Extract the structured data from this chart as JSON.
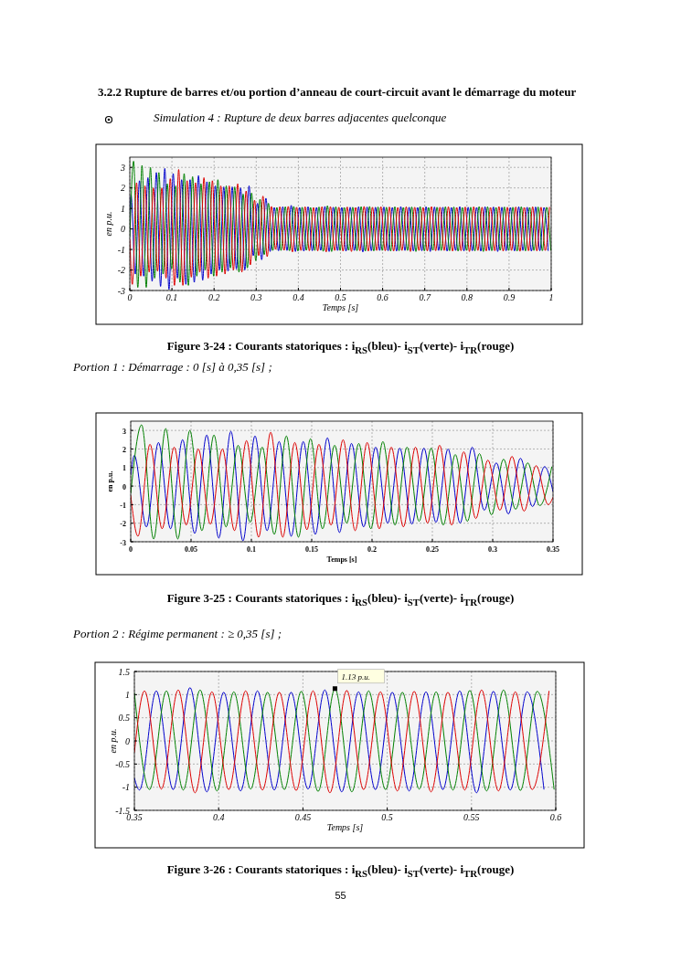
{
  "chart_data": [
    {
      "type": "line",
      "title": "3.2.2  Rupture de barres et/ou portion d’anneau de court-circuit avant le démarrage du moteur",
      "subtitle": "Simulation 4 : Rupture de deux barres adjacentes quelconque",
      "xlabel": "Temps [s]",
      "ylabel": "en p.u.",
      "xlim": [
        0,
        1
      ],
      "xticks": [
        0,
        0.1,
        0.2,
        0.3,
        0.4,
        0.5,
        0.6,
        0.7,
        0.8,
        0.9,
        1
      ],
      "ylim": [
        -3,
        3.5
      ],
      "yticks": [
        -3,
        -2,
        -1,
        0,
        1,
        2,
        3
      ],
      "grid": true,
      "line_style": "solid",
      "annotations": [
        "Figure 3-24 : Courants statoriques : i$_{RS}$(bleu)- i$_{ST}$(verte)- i$_{TR}$(rouge)"
      ],
      "series": [
        {
          "color": "#0000cc",
          "x": [
            0,
            0.003,
            0.013,
            0.023,
            0.033,
            0.043,
            0.053,
            0.063,
            0.073,
            0.083,
            0.093,
            0.103,
            0.113,
            0.123,
            0.133,
            0.143,
            0.153,
            0.163,
            0.173,
            0.183,
            0.193,
            0.203,
            0.213,
            0.223,
            0.233,
            0.243,
            0.253,
            0.263,
            0.273,
            0.283,
            0.293,
            0.303,
            0.313,
            0.323,
            0.333,
            0.343,
            0.353,
            0.363,
            0.373,
            0.383,
            0.393,
            0.403,
            0.413,
            0.423,
            0.433,
            0.443,
            0.453,
            0.463,
            0.473,
            0.483,
            0.493,
            0.503,
            0.513,
            0.523,
            0.533,
            0.543,
            0.553,
            0.563,
            0.573,
            0.583,
            0.593,
            0.603,
            0.613,
            0.623,
            0.633,
            0.643,
            0.653,
            0.663,
            0.673,
            0.683,
            0.693,
            0.703,
            0.713,
            0.723,
            0.733,
            0.743,
            0.753,
            0.763,
            0.773,
            0.783,
            0.793,
            0.803,
            0.813,
            0.823,
            0.833,
            0.843,
            0.853,
            0.863,
            0.873,
            0.883,
            0.893,
            0.903,
            0.913,
            0.923,
            0.933,
            0.943,
            0.953,
            0.963,
            0.973,
            0.983,
            0.993
          ],
          "values": [
            0.6,
            1.65,
            -2.2,
            2.35,
            -2.3,
            2.5,
            -2.55,
            2.75,
            -2.8,
            2.95,
            -2.95,
            2.7,
            -2.4,
            2.4,
            -2.7,
            2.4,
            -2.6,
            2.6,
            -2.5,
            2.3,
            -2.2,
            2.1,
            -2.0,
            2.05,
            -2.05,
            2.05,
            -1.95,
            2.0,
            -2.0,
            2.1,
            -1.3,
            1.25,
            -1.5,
            1.5,
            -1.1,
            1.05,
            -1.06,
            1.08,
            -1.05,
            1.15,
            -1.1,
            1.05,
            -1.08,
            1.08,
            -1.06,
            1.05,
            -1.04,
            1.1,
            -1.1,
            1.06,
            -1.05,
            1.05,
            -1.08,
            1.06,
            -1.05,
            1.08,
            -1.12,
            1.07,
            -1.06,
            1.06,
            -1.05,
            1.07,
            -1.06,
            1.05,
            -1.08,
            1.09,
            -1.05,
            1.06,
            -1.07,
            1.05,
            -1.06,
            1.08,
            -1.1,
            1.07,
            -1.05,
            1.06,
            -1.08,
            1.05,
            -1.05,
            1.09,
            -1.07,
            1.06,
            -1.06,
            1.05,
            -1.08,
            1.08,
            -1.05,
            1.07,
            -1.1,
            1.06,
            -1.06,
            1.05,
            -1.07,
            1.08,
            -1.05,
            1.06,
            -1.08,
            1.07,
            -1.06,
            1.05,
            -1.07
          ]
        },
        {
          "color": "#008000",
          "x": [
            0,
            0.009,
            0.019,
            0.029,
            0.039,
            0.049,
            0.059,
            0.069,
            0.079,
            0.089,
            0.099,
            0.109,
            0.119,
            0.129,
            0.139,
            0.149,
            0.159,
            0.169,
            0.179,
            0.189,
            0.199,
            0.209,
            0.219,
            0.229,
            0.239,
            0.249,
            0.259,
            0.269,
            0.279,
            0.289,
            0.299,
            0.309,
            0.319,
            0.329,
            0.339,
            0.349,
            0.359,
            0.369,
            0.379,
            0.389,
            0.399,
            0.409,
            0.419,
            0.429,
            0.439,
            0.449,
            0.459,
            0.469,
            0.479,
            0.489,
            0.499,
            0.509,
            0.519,
            0.529,
            0.539,
            0.549,
            0.559,
            0.569,
            0.579,
            0.589,
            0.599,
            0.609,
            0.619,
            0.629,
            0.639,
            0.649,
            0.659,
            0.669,
            0.679,
            0.689,
            0.699,
            0.709,
            0.719,
            0.729,
            0.739,
            0.749,
            0.759,
            0.769,
            0.779,
            0.789,
            0.799,
            0.809,
            0.819,
            0.829,
            0.839,
            0.849,
            0.859,
            0.869,
            0.879,
            0.889,
            0.899,
            0.909,
            0.919,
            0.929,
            0.939,
            0.949,
            0.959,
            0.969,
            0.979,
            0.989,
            0.999
          ],
          "values": [
            -0.4,
            3.3,
            -2.85,
            3.1,
            -2.85,
            3.0,
            -2.4,
            2.75,
            -2.2,
            2.2,
            -1.95,
            2.1,
            -2.6,
            2.7,
            -2.75,
            2.55,
            -2.3,
            2.2,
            -2.0,
            2.3,
            -2.3,
            2.4,
            -2.1,
            2.1,
            -1.9,
            2.05,
            -2.1,
            1.7,
            -1.9,
            1.75,
            -1.55,
            1.45,
            -1.25,
            1.25,
            -1.05,
            1.05,
            -1.05,
            1.08,
            -1.06,
            1.1,
            -1.08,
            1.06,
            -1.04,
            1.05,
            -1.05,
            1.07,
            -1.09,
            1.13,
            -1.1,
            1.08,
            -1.05,
            1.05,
            -1.04,
            1.06,
            -1.06,
            1.09,
            -1.08,
            1.1,
            -1.07,
            1.07,
            -1.05,
            1.06,
            -1.08,
            1.08,
            -1.06,
            1.05,
            -1.05,
            1.07,
            -1.1,
            1.09,
            -1.07,
            1.05,
            -1.04,
            1.06,
            -1.05,
            1.08,
            -1.06,
            1.07,
            -1.08,
            1.05,
            -1.05,
            1.06,
            -1.07,
            1.09,
            -1.1,
            1.08,
            -1.06,
            1.05,
            -1.04,
            1.07,
            -1.05,
            1.06,
            -1.08,
            1.08,
            -1.07,
            1.05,
            -1.05,
            1.07,
            -1.06,
            1.06,
            -1.05
          ]
        },
        {
          "color": "#dd0000",
          "x": [
            0,
            0.006,
            0.016,
            0.026,
            0.036,
            0.046,
            0.056,
            0.066,
            0.076,
            0.086,
            0.096,
            0.106,
            0.116,
            0.126,
            0.136,
            0.146,
            0.156,
            0.166,
            0.176,
            0.186,
            0.196,
            0.206,
            0.216,
            0.226,
            0.236,
            0.246,
            0.256,
            0.266,
            0.276,
            0.286,
            0.296,
            0.306,
            0.316,
            0.326,
            0.336,
            0.346,
            0.356,
            0.366,
            0.376,
            0.386,
            0.396,
            0.406,
            0.416,
            0.426,
            0.436,
            0.446,
            0.456,
            0.466,
            0.476,
            0.486,
            0.496,
            0.506,
            0.516,
            0.526,
            0.536,
            0.546,
            0.556,
            0.566,
            0.576,
            0.586,
            0.596,
            0.606,
            0.616,
            0.626,
            0.636,
            0.646,
            0.656,
            0.666,
            0.676,
            0.686,
            0.696,
            0.706,
            0.716,
            0.726,
            0.736,
            0.746,
            0.756,
            0.766,
            0.776,
            0.786,
            0.796,
            0.806,
            0.816,
            0.826,
            0.836,
            0.846,
            0.856,
            0.866,
            0.876,
            0.886,
            0.896,
            0.906,
            0.916,
            0.926,
            0.936,
            0.946,
            0.956,
            0.966,
            0.976,
            0.986,
            0.996
          ],
          "values": [
            -0.5,
            -2.7,
            2.25,
            -2.3,
            2.1,
            -2.1,
            2.0,
            -2.05,
            2.0,
            -2.4,
            2.45,
            -2.75,
            2.9,
            -2.75,
            2.35,
            -2.35,
            2.25,
            -2.1,
            2.5,
            -2.4,
            2.35,
            -2.3,
            2.1,
            -2.2,
            2.1,
            -2.0,
            2.2,
            -2.1,
            1.85,
            -1.75,
            1.4,
            -1.3,
            1.6,
            -1.35,
            1.1,
            -1.0,
            1.08,
            -1.04,
            1.1,
            -1.12,
            1.06,
            -1.05,
            1.08,
            -1.06,
            1.05,
            -1.07,
            1.08,
            -1.12,
            1.09,
            -1.05,
            1.06,
            -1.08,
            1.07,
            -1.1,
            1.05,
            -1.06,
            1.1,
            -1.08,
            1.06,
            -1.05,
            1.08,
            -1.06,
            1.07,
            -1.08,
            1.05,
            -1.05,
            1.08,
            -1.1,
            1.06,
            -1.05,
            1.05,
            -1.07,
            1.09,
            -1.06,
            1.06,
            -1.05,
            1.08,
            -1.08,
            1.05,
            -1.06,
            1.07,
            -1.1,
            1.08,
            -1.05,
            1.06,
            -1.07,
            1.05,
            -1.06,
            1.09,
            -1.08,
            1.06,
            -1.05,
            1.07,
            -1.09,
            1.05,
            -1.06,
            1.08,
            -1.07,
            1.06,
            -1.05,
            1.07
          ]
        }
      ]
    },
    {
      "type": "line",
      "title": "Portion 1 : Démarrage : 0 [s] à 0,35 [s] ;",
      "xlabel": "Temps [s]",
      "ylabel": "en p.u.",
      "xlim": [
        0,
        0.35
      ],
      "xticks": [
        0,
        0.05,
        0.1,
        0.15,
        0.2,
        0.25,
        0.3,
        0.35
      ],
      "ylim": [
        -3,
        3.5
      ],
      "yticks": [
        -3,
        -2,
        -1,
        0,
        1,
        2,
        3
      ],
      "grid": true,
      "line_style": "solid",
      "annotations": [
        "Figure 3-25 : Courants statoriques : i$_{RS}$(bleu)- i$_{ST}$(verte)- i$_{TR}$(rouge)"
      ],
      "series": [
        {
          "color": "#0000cc",
          "x": [
            0,
            0.003,
            0.013,
            0.023,
            0.033,
            0.043,
            0.053,
            0.063,
            0.073,
            0.083,
            0.093,
            0.103,
            0.113,
            0.123,
            0.133,
            0.143,
            0.153,
            0.163,
            0.173,
            0.183,
            0.193,
            0.203,
            0.213,
            0.223,
            0.233,
            0.243,
            0.253,
            0.263,
            0.273,
            0.283,
            0.293,
            0.303,
            0.313,
            0.323,
            0.333,
            0.343,
            0.35
          ],
          "values": [
            0.6,
            1.65,
            -2.2,
            2.35,
            -2.3,
            2.5,
            -2.55,
            2.75,
            -2.8,
            2.95,
            -2.95,
            2.7,
            -2.4,
            2.4,
            -2.7,
            2.4,
            -2.6,
            2.6,
            -2.5,
            2.3,
            -2.2,
            2.1,
            -2.0,
            2.05,
            -2.05,
            2.05,
            -1.95,
            2.0,
            -2.0,
            2.1,
            -1.3,
            1.25,
            -1.5,
            1.5,
            -1.1,
            1.05,
            -0.3
          ]
        },
        {
          "color": "#008000",
          "x": [
            0,
            0.009,
            0.019,
            0.029,
            0.039,
            0.049,
            0.059,
            0.069,
            0.079,
            0.089,
            0.099,
            0.109,
            0.119,
            0.129,
            0.139,
            0.149,
            0.159,
            0.169,
            0.179,
            0.189,
            0.199,
            0.209,
            0.219,
            0.229,
            0.239,
            0.249,
            0.259,
            0.269,
            0.279,
            0.289,
            0.299,
            0.309,
            0.319,
            0.329,
            0.339,
            0.349
          ],
          "values": [
            -0.4,
            3.3,
            -2.85,
            3.1,
            -2.85,
            3.0,
            -2.4,
            2.75,
            -2.2,
            2.2,
            -1.95,
            2.1,
            -2.6,
            2.7,
            -2.75,
            2.55,
            -2.3,
            2.2,
            -2.0,
            2.3,
            -2.3,
            2.4,
            -2.1,
            2.1,
            -1.9,
            2.05,
            -2.1,
            1.7,
            -1.9,
            1.75,
            -1.55,
            1.45,
            -1.25,
            1.25,
            -1.05,
            1.05
          ]
        },
        {
          "color": "#dd0000",
          "x": [
            0,
            0.006,
            0.016,
            0.026,
            0.036,
            0.046,
            0.056,
            0.066,
            0.076,
            0.086,
            0.096,
            0.106,
            0.116,
            0.126,
            0.136,
            0.146,
            0.156,
            0.166,
            0.176,
            0.186,
            0.196,
            0.206,
            0.216,
            0.226,
            0.236,
            0.246,
            0.256,
            0.266,
            0.276,
            0.286,
            0.296,
            0.306,
            0.316,
            0.326,
            0.336,
            0.346,
            0.35
          ],
          "values": [
            -0.5,
            -2.7,
            2.25,
            -2.3,
            2.1,
            -2.1,
            2.0,
            -2.05,
            2.0,
            -2.4,
            2.45,
            -2.75,
            2.9,
            -2.75,
            2.35,
            -2.35,
            2.25,
            -2.1,
            2.5,
            -2.4,
            2.35,
            -2.3,
            2.1,
            -2.2,
            2.1,
            -2.0,
            2.2,
            -2.1,
            1.85,
            -1.75,
            1.4,
            -1.3,
            1.6,
            -1.35,
            1.1,
            -1.0,
            -0.6
          ]
        }
      ]
    },
    {
      "type": "line",
      "title": "Portion 2 : Régime permanent : ≥ 0,35 [s] ;",
      "xlabel": "Temps [s]",
      "ylabel": "en p.u.",
      "xlim": [
        0.35,
        0.6
      ],
      "xticks": [
        0.35,
        0.4,
        0.45,
        0.5,
        0.55,
        0.6
      ],
      "ylim": [
        -1.5,
        1.5
      ],
      "yticks": [
        -1.5,
        -1,
        -0.5,
        0,
        0.5,
        1,
        1.5
      ],
      "grid": true,
      "line_style": "solid",
      "annotations": [
        {
          "text": "1.13 p.u.",
          "x": 0.469,
          "y": 1.13
        },
        "Figure 3-26 : Courants statoriques : i$_{RS}$(bleu)- i$_{ST}$(verte)- i$_{TR}$(rouge)",
        "55"
      ],
      "series": [
        {
          "color": "#0000cc",
          "x": [
            0.35,
            0.353,
            0.363,
            0.373,
            0.383,
            0.393,
            0.403,
            0.413,
            0.423,
            0.433,
            0.443,
            0.453,
            0.463,
            0.473,
            0.483,
            0.493,
            0.503,
            0.513,
            0.523,
            0.533,
            0.543,
            0.553,
            0.563,
            0.573,
            0.583,
            0.593
          ],
          "values": [
            -0.8,
            -1.06,
            1.08,
            -1.05,
            1.15,
            -1.1,
            1.05,
            -1.08,
            1.08,
            -1.06,
            1.05,
            -1.04,
            1.1,
            -1.1,
            1.06,
            -1.05,
            1.05,
            -1.08,
            1.06,
            -1.05,
            1.08,
            -1.12,
            1.07,
            -1.06,
            1.06,
            -1.05
          ]
        },
        {
          "color": "#008000",
          "x": [
            0.35,
            0.359,
            0.369,
            0.379,
            0.389,
            0.399,
            0.409,
            0.419,
            0.429,
            0.439,
            0.449,
            0.459,
            0.469,
            0.479,
            0.489,
            0.499,
            0.509,
            0.519,
            0.529,
            0.539,
            0.549,
            0.559,
            0.569,
            0.579,
            0.589,
            0.599
          ],
          "values": [
            1.04,
            -1.05,
            1.08,
            -1.06,
            1.1,
            -1.08,
            1.06,
            -1.04,
            1.05,
            -1.05,
            1.07,
            -1.09,
            1.13,
            -1.1,
            1.08,
            -1.05,
            1.05,
            -1.04,
            1.06,
            -1.06,
            1.09,
            -1.08,
            1.1,
            -1.07,
            1.07,
            -1.05
          ]
        },
        {
          "color": "#dd0000",
          "x": [
            0.35,
            0.356,
            0.366,
            0.376,
            0.386,
            0.396,
            0.406,
            0.416,
            0.426,
            0.436,
            0.446,
            0.456,
            0.466,
            0.476,
            0.486,
            0.496,
            0.506,
            0.516,
            0.526,
            0.536,
            0.546,
            0.556,
            0.566,
            0.576,
            0.586,
            0.596
          ],
          "values": [
            -0.25,
            1.08,
            -1.04,
            1.1,
            -1.12,
            1.06,
            -1.05,
            1.08,
            -1.06,
            1.05,
            -1.07,
            1.08,
            -1.12,
            1.09,
            -1.05,
            1.06,
            -1.08,
            1.07,
            -1.1,
            1.05,
            -1.06,
            1.1,
            -1.08,
            1.06,
            -1.05,
            1.08
          ]
        }
      ]
    }
  ]
}
